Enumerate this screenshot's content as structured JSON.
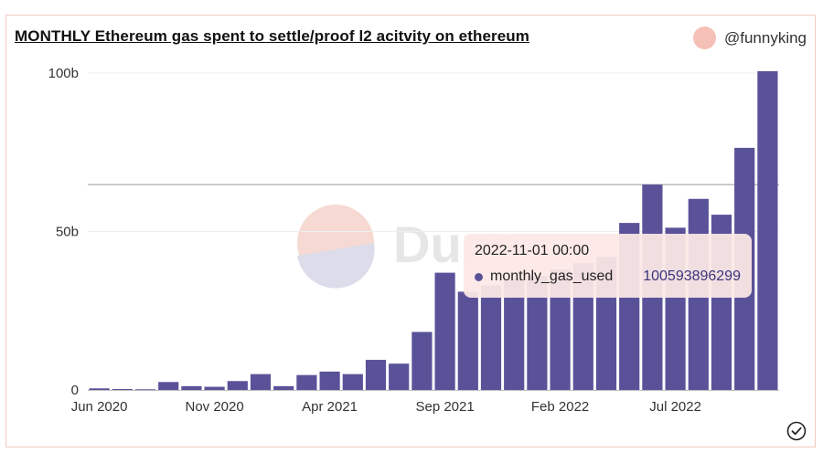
{
  "header": {
    "title": "MONTHLY Ethereum gas spent to settle/proof l2 acitvity on ethereum",
    "author": "@funnyking"
  },
  "watermark": {
    "text": "Dune"
  },
  "colors": {
    "bar": "#5a5299",
    "accent": "#f5c0b6",
    "grid": "#eeeeee"
  },
  "tooltip": {
    "date": "2022-11-01 00:00",
    "series_name": "monthly_gas_used",
    "value": "100593896299"
  },
  "chart_data": {
    "type": "bar",
    "title": "MONTHLY Ethereum gas spent to settle/proof l2 acitvity on ethereum",
    "xlabel": "",
    "ylabel": "",
    "ylim": [
      0,
      100000000000
    ],
    "yticks": [
      "0",
      "50b",
      "100b"
    ],
    "ytick_values": [
      0,
      50000000000,
      100000000000
    ],
    "xtick_labels": [
      "Jun 2020",
      "Nov 2020",
      "Apr 2021",
      "Sep 2021",
      "Feb 2022",
      "Jul 2022"
    ],
    "xtick_indices": [
      0,
      5,
      10,
      15,
      20,
      25
    ],
    "grid": true,
    "categories": [
      "2020-06",
      "2020-07",
      "2020-08",
      "2020-09",
      "2020-10",
      "2020-11",
      "2020-12",
      "2021-01",
      "2021-02",
      "2021-03",
      "2021-04",
      "2021-05",
      "2021-06",
      "2021-07",
      "2021-08",
      "2021-09",
      "2021-10",
      "2021-11",
      "2021-12",
      "2022-01",
      "2022-02",
      "2022-03",
      "2022-04",
      "2022-05",
      "2022-06",
      "2022-07",
      "2022-08",
      "2022-09",
      "2022-10",
      "2022-11"
    ],
    "series": [
      {
        "name": "monthly_gas_used",
        "values": [
          500000000,
          300000000,
          200000000,
          2500000000,
          1200000000,
          1000000000,
          2800000000,
          5000000000,
          1200000000,
          4700000000,
          5800000000,
          5000000000,
          9500000000,
          8300000000,
          18300000000,
          37000000000,
          31000000000,
          33000000000,
          35000000000,
          36000000000,
          38000000000,
          40000000000,
          42000000000,
          52700000000,
          64800000000,
          51200000000,
          60300000000,
          55300000000,
          76400000000,
          100593896299
        ]
      }
    ]
  }
}
